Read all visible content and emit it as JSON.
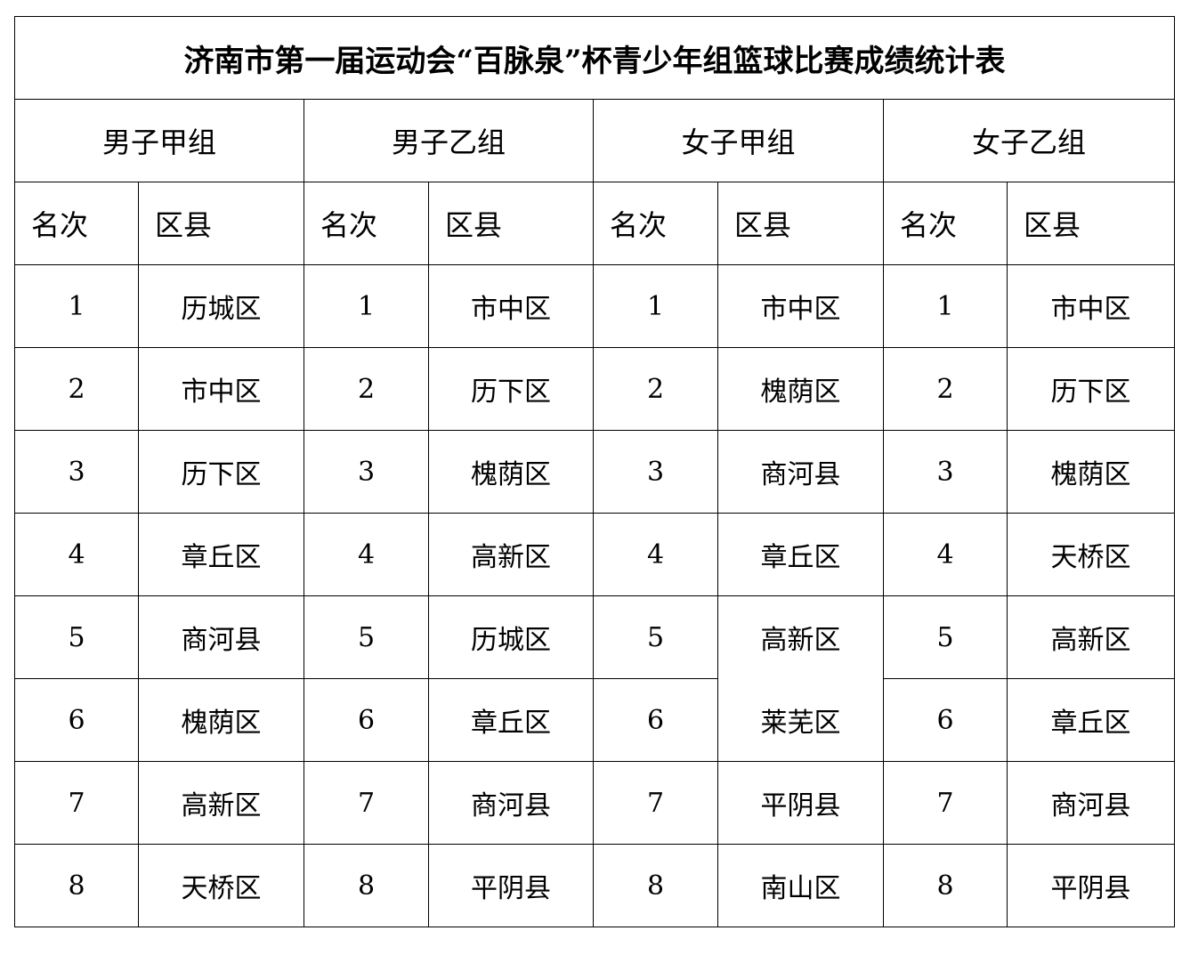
{
  "title": "济南市第一届运动会“百脉泉”杯青少年组篮球比赛成绩统计表",
  "groups": [
    {
      "name": "男子甲组",
      "rank_header": "名次",
      "district_header": "区县",
      "results": [
        {
          "rank": "1",
          "district": "历城区"
        },
        {
          "rank": "2",
          "district": "市中区"
        },
        {
          "rank": "3",
          "district": "历下区"
        },
        {
          "rank": "4",
          "district": "章丘区"
        },
        {
          "rank": "5",
          "district": "商河县"
        },
        {
          "rank": "6",
          "district": "槐荫区"
        },
        {
          "rank": "7",
          "district": "高新区"
        },
        {
          "rank": "8",
          "district": "天桥区"
        }
      ]
    },
    {
      "name": "男子乙组",
      "rank_header": "名次",
      "district_header": "区县",
      "results": [
        {
          "rank": "1",
          "district": "市中区"
        },
        {
          "rank": "2",
          "district": "历下区"
        },
        {
          "rank": "3",
          "district": "槐荫区"
        },
        {
          "rank": "4",
          "district": "高新区"
        },
        {
          "rank": "5",
          "district": "历城区"
        },
        {
          "rank": "6",
          "district": "章丘区"
        },
        {
          "rank": "7",
          "district": "商河县"
        },
        {
          "rank": "8",
          "district": "平阴县"
        }
      ]
    },
    {
      "name": "女子甲组",
      "rank_header": "名次",
      "district_header": "区县",
      "results": [
        {
          "rank": "1",
          "district": "市中区"
        },
        {
          "rank": "2",
          "district": "槐荫区"
        },
        {
          "rank": "3",
          "district": "商河县"
        },
        {
          "rank": "4",
          "district": "章丘区"
        },
        {
          "rank": "5",
          "district": "高新区"
        },
        {
          "rank": "6",
          "district": "莱芜区"
        },
        {
          "rank": "7",
          "district": "平阴县"
        },
        {
          "rank": "8",
          "district": "南山区"
        }
      ]
    },
    {
      "name": "女子乙组",
      "rank_header": "名次",
      "district_header": "区县",
      "results": [
        {
          "rank": "1",
          "district": "市中区"
        },
        {
          "rank": "2",
          "district": "历下区"
        },
        {
          "rank": "3",
          "district": "槐荫区"
        },
        {
          "rank": "4",
          "district": "天桥区"
        },
        {
          "rank": "5",
          "district": "高新区"
        },
        {
          "rank": "6",
          "district": "章丘区"
        },
        {
          "rank": "7",
          "district": "商河县"
        },
        {
          "rank": "8",
          "district": "平阴县"
        }
      ]
    }
  ]
}
